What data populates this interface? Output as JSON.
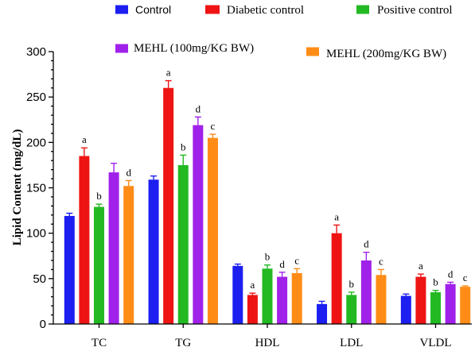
{
  "chart_data": {
    "type": "bar",
    "categories": [
      "TC",
      "TG",
      "HDL",
      "LDL",
      "VLDL"
    ],
    "series": [
      {
        "name": "Control",
        "color": "#1c1ff0",
        "values": [
          119,
          159,
          64,
          22,
          31
        ],
        "errors": [
          3,
          4,
          2,
          3,
          2
        ],
        "sig_letters": [
          "",
          "",
          "",
          "",
          ""
        ]
      },
      {
        "name": "Diabetic control",
        "color": "#ee1414",
        "values": [
          185,
          260,
          32,
          100,
          52
        ],
        "errors": [
          9,
          8,
          2,
          9,
          3
        ],
        "sig_letters": [
          "a",
          "a",
          "a",
          "a",
          "a"
        ]
      },
      {
        "name": "Positive control",
        "color": "#23b923",
        "values": [
          129,
          175,
          61,
          32,
          35
        ],
        "errors": [
          3,
          11,
          4,
          3,
          2
        ],
        "sig_letters": [
          "b",
          "b",
          "b",
          "b",
          "b"
        ]
      },
      {
        "name": "MEHL (100mg/KG BW)",
        "color": "#a021ea",
        "values": [
          167,
          219,
          52,
          70,
          44
        ],
        "errors": [
          10,
          9,
          5,
          9,
          2
        ],
        "sig_letters": [
          "",
          "d",
          "d",
          "d",
          "d"
        ]
      },
      {
        "name": "MEHL (200mg/KG BW)",
        "color": "#ff8c17",
        "values": [
          152,
          205,
          56,
          54,
          41
        ],
        "errors": [
          6,
          4,
          5,
          6,
          1
        ],
        "sig_letters": [
          "d",
          "c",
          "c",
          "c",
          "c"
        ]
      }
    ],
    "ylabel": "Lipid Content (mg/dL)",
    "ylim": [
      0,
      300
    ],
    "yticks": [
      0,
      50,
      100,
      150,
      200,
      250,
      300
    ],
    "grid": false,
    "legend": "top"
  }
}
